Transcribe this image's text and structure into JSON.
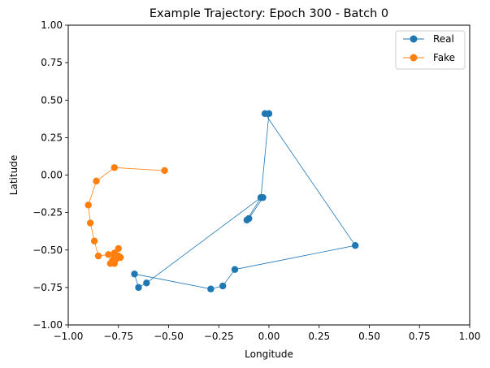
{
  "chart_data": {
    "type": "line",
    "title": "Example Trajectory: Epoch 300 - Batch 0",
    "xlabel": "Longitude",
    "ylabel": "Latitude",
    "xlim": [
      -1.0,
      1.0
    ],
    "ylim": [
      -1.0,
      1.0
    ],
    "xticks": [
      "−1.00",
      "−0.75",
      "−0.50",
      "−0.25",
      "0.00",
      "0.25",
      "0.50",
      "0.75",
      "1.00"
    ],
    "yticks": [
      "−1.00",
      "−0.75",
      "−0.50",
      "−0.25",
      "0.00",
      "0.25",
      "0.50",
      "0.75",
      "1.00"
    ],
    "grid": false,
    "legend_position": "top-right",
    "series": [
      {
        "name": "Real",
        "color": "#1f77b4",
        "marker": "circle",
        "points": [
          [
            0.0,
            0.41
          ],
          [
            -0.04,
            -0.15
          ],
          [
            -0.03,
            -0.15
          ],
          [
            -0.1,
            -0.29
          ],
          [
            -0.11,
            -0.3
          ],
          [
            -0.04,
            -0.15
          ],
          [
            -0.61,
            -0.72
          ],
          [
            -0.65,
            -0.75
          ],
          [
            -0.67,
            -0.66
          ],
          [
            -0.29,
            -0.76
          ],
          [
            -0.23,
            -0.74
          ],
          [
            -0.17,
            -0.63
          ],
          [
            0.43,
            -0.47
          ],
          [
            -0.02,
            0.41
          ]
        ]
      },
      {
        "name": "Fake",
        "color": "#ff7f0e",
        "marker": "circle",
        "points": [
          [
            -0.52,
            0.03
          ],
          [
            -0.77,
            0.05
          ],
          [
            -0.86,
            -0.04
          ],
          [
            -0.9,
            -0.2
          ],
          [
            -0.89,
            -0.32
          ],
          [
            -0.87,
            -0.44
          ],
          [
            -0.85,
            -0.54
          ],
          [
            -0.8,
            -0.53
          ],
          [
            -0.77,
            -0.55
          ],
          [
            -0.78,
            -0.57
          ],
          [
            -0.79,
            -0.59
          ],
          [
            -0.77,
            -0.59
          ],
          [
            -0.76,
            -0.56
          ],
          [
            -0.74,
            -0.55
          ],
          [
            -0.75,
            -0.54
          ],
          [
            -0.77,
            -0.52
          ],
          [
            -0.75,
            -0.49
          ]
        ]
      }
    ]
  }
}
